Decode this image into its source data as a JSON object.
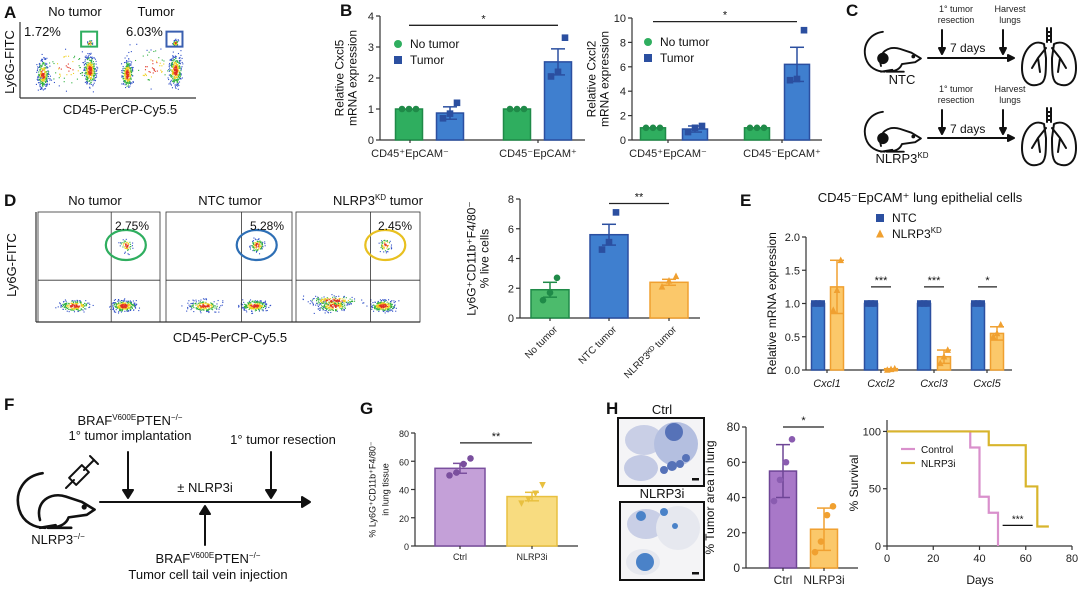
{
  "panel_labels": [
    "A",
    "B",
    "C",
    "D",
    "E",
    "F",
    "G",
    "H"
  ],
  "panelA": {
    "titles": [
      "No tumor",
      "Tumor"
    ],
    "percentages": [
      "1.72%",
      "6.03%"
    ],
    "gate_colors": [
      "#2fae5f",
      "#3a5fb0"
    ],
    "ylabel": "Ly6G-FITC",
    "xlabel": "CD45-PerCP-Cy5.5"
  },
  "panelC": {
    "step1": [
      "1° tumor",
      "resection"
    ],
    "step2": [
      "Harvest",
      "lungs"
    ],
    "duration": "7 days",
    "groups": [
      {
        "name": "NTC",
        "sup": ""
      },
      {
        "name": "NLRP3",
        "sup": "KD"
      }
    ]
  },
  "panelD_flow": {
    "titles": [
      {
        "name": "No tumor",
        "sup": "",
        "rest": ""
      },
      {
        "name": "NTC tumor",
        "sup": "",
        "rest": ""
      },
      {
        "name": "NLRP3",
        "sup": "KD",
        "rest": " tumor"
      }
    ],
    "percentages": [
      "2.75%",
      "5.28%",
      "2.45%"
    ],
    "gate_colors": [
      "#2fae5f",
      "#2e6fb5",
      "#e8c020"
    ],
    "ylabel": "Ly6G-FITC",
    "xlabel": "CD45-PerCP-Cy5.5"
  },
  "panelF": {
    "implant_gene": {
      "a": "BRAF",
      "b": "V600E",
      "c": "PTEN",
      "d": "−/−"
    },
    "implant_label": "1° tumor implantation",
    "resection_label": "1° tumor resection",
    "treatment": "± NLRP3i",
    "mouse": {
      "name": "NLRP3",
      "sup": "−/−"
    },
    "injection_gene": {
      "a": "BRAF",
      "b": "V600E",
      "c": "PTEN",
      "d": "−/−"
    },
    "injection_label": "Tumor cell tail vein injection"
  },
  "panelH_images": {
    "titles": [
      "Ctrl",
      "NLRP3i"
    ]
  },
  "chart_data": [
    {
      "id": "B1",
      "type": "bar",
      "categories": [
        "CD45⁺EpCAM⁻",
        "CD45⁻EpCAM⁺"
      ],
      "ylabel": [
        "Relative Cxcl5",
        "mRNA expression"
      ],
      "ylim": [
        0,
        4
      ],
      "yticks": [
        0,
        1,
        2,
        3,
        4
      ],
      "series": [
        {
          "name": "No tumor",
          "color": "#2fae5f",
          "edge": "#1f8a48",
          "marker": "circle",
          "values": [
            1,
            1
          ],
          "error": [
            0,
            0
          ],
          "points": [
            [
              1,
              1,
              1
            ],
            [
              1,
              1,
              1
            ]
          ]
        },
        {
          "name": "Tumor",
          "color": "#3f7fcf",
          "edge": "#2b4fa0",
          "marker": "square",
          "values": [
            0.87,
            2.52
          ],
          "error": [
            0.2,
            0.42
          ],
          "points": [
            [
              0.7,
              0.85,
              1.2
            ],
            [
              2.05,
              2.2,
              3.3
            ]
          ]
        }
      ],
      "significance": [
        {
          "label": "*",
          "from": [
            0,
            0
          ],
          "to": [
            1,
            1
          ],
          "y": 3.7
        }
      ],
      "legend": "top-left"
    },
    {
      "id": "B2",
      "type": "bar",
      "categories": [
        "CD45⁺EpCAM⁻",
        "CD45⁻EpCAM⁺"
      ],
      "ylabel": [
        "Relative Cxcl2",
        "mRNA expression"
      ],
      "ylim": [
        0,
        10
      ],
      "yticks": [
        0,
        2,
        4,
        6,
        8,
        10
      ],
      "series": [
        {
          "name": "No tumor",
          "color": "#2fae5f",
          "edge": "#1f8a48",
          "marker": "circle",
          "values": [
            1,
            1
          ],
          "error": [
            0,
            0
          ],
          "points": [
            [
              1,
              1,
              1
            ],
            [
              1,
              1,
              1
            ]
          ]
        },
        {
          "name": "Tumor",
          "color": "#3f7fcf",
          "edge": "#2b4fa0",
          "marker": "square",
          "values": [
            0.9,
            6.2
          ],
          "error": [
            0.25,
            1.4
          ],
          "points": [
            [
              0.65,
              1.0,
              1.15
            ],
            [
              4.9,
              5.0,
              9.0
            ]
          ]
        }
      ],
      "significance": [
        {
          "label": "*",
          "from": [
            0,
            0
          ],
          "to": [
            1,
            1
          ],
          "y": 9.7
        }
      ],
      "legend": "top-left"
    },
    {
      "id": "D",
      "type": "bar",
      "categories": [
        "No tumor",
        "NTC tumor",
        "NLRP3ᴷᴰ tumor"
      ],
      "ylabel": [
        "Ly6G⁺CD11b⁺F4/80⁻",
        "% live cells"
      ],
      "ylim": [
        0,
        8
      ],
      "yticks": [
        0,
        2,
        4,
        6,
        8
      ],
      "series": [
        {
          "name": "",
          "colors": [
            "#4cbb6c",
            "#3f7fcf",
            "#fbc86a"
          ],
          "edges": [
            "#1f8a48",
            "#2b4fa0",
            "#f0a030"
          ],
          "markers": [
            "circle",
            "square",
            "triangle"
          ],
          "values": [
            1.9,
            5.6,
            2.4
          ],
          "error": [
            0.5,
            0.7,
            0.2
          ],
          "points": [
            [
              1.2,
              1.7,
              2.7
            ],
            [
              4.6,
              5.1,
              7.1
            ],
            [
              2.1,
              2.5,
              2.8
            ]
          ]
        }
      ],
      "significance": [
        {
          "label": "**",
          "from": [
            0,
            1
          ],
          "to": [
            0,
            2
          ],
          "y": 7.7
        }
      ],
      "xlabel_rotated": true
    },
    {
      "id": "E",
      "type": "bar",
      "title": "CD45⁻EpCAM⁺ lung epithelial cells",
      "categories": [
        "Cxcl1",
        "Cxcl2",
        "Cxcl3",
        "Cxcl5"
      ],
      "ylabel": [
        "Relative mRNA expression"
      ],
      "ylim": [
        0,
        2
      ],
      "yticks": [
        0,
        0.5,
        1,
        1.5,
        2
      ],
      "ytick_labels": [
        "0.0",
        "0.5",
        "1.0",
        "1.5",
        "2.0"
      ],
      "series": [
        {
          "name": "NTC",
          "sup": "",
          "color": "#3f7fcf",
          "edge": "#2b4fa0",
          "marker": "square",
          "values": [
            1,
            1,
            1,
            1
          ],
          "error": [
            0,
            0,
            0,
            0
          ],
          "points": [
            [
              1,
              1,
              1
            ],
            [
              1,
              1,
              1
            ],
            [
              1,
              1,
              1
            ],
            [
              1,
              1,
              1
            ]
          ]
        },
        {
          "name": "NLRP3",
          "sup": "KD",
          "color": "#fbc86a",
          "edge": "#f0a030",
          "marker": "triangle",
          "values": [
            1.25,
            0.01,
            0.2,
            0.55
          ],
          "error": [
            0.4,
            0.01,
            0.1,
            0.1
          ],
          "points": [
            [
              0.9,
              1.2,
              1.65
            ],
            [
              0,
              0.01,
              0.02
            ],
            [
              0.1,
              0.2,
              0.3
            ],
            [
              0.5,
              0.55,
              0.68
            ]
          ]
        }
      ],
      "significance": [
        {
          "label": "***",
          "from": [
            0,
            1
          ],
          "to": [
            1,
            1
          ],
          "y": 1.25
        },
        {
          "label": "***",
          "from": [
            0,
            2
          ],
          "to": [
            1,
            2
          ],
          "y": 1.25
        },
        {
          "label": "*",
          "from": [
            0,
            3
          ],
          "to": [
            1,
            3
          ],
          "y": 1.25
        }
      ],
      "legend": "top-center",
      "italic_categories": true
    },
    {
      "id": "G",
      "type": "bar",
      "categories": [
        "Ctrl",
        "NLRP3i"
      ],
      "ylabel": [
        "% Ly6G⁺CD11b⁺F4/80⁻",
        "in lung tissue"
      ],
      "ylim": [
        0,
        80
      ],
      "yticks": [
        0,
        20,
        40,
        60,
        80
      ],
      "series": [
        {
          "name": "",
          "colors": [
            "#c4a0d8",
            "#f8dc80"
          ],
          "edges": [
            "#7a4f9e",
            "#e8c040"
          ],
          "markers": [
            "circle",
            "triangle-down"
          ],
          "values": [
            55,
            35
          ],
          "error": [
            3.5,
            3
          ],
          "points": [
            [
              50,
              52,
              58,
              62
            ],
            [
              30,
              33,
              37,
              43
            ]
          ]
        }
      ],
      "significance": [
        {
          "label": "**",
          "from": [
            0,
            0
          ],
          "to": [
            0,
            1
          ],
          "y": 73
        }
      ]
    },
    {
      "id": "H",
      "type": "bar",
      "categories": [
        "Ctrl",
        "NLRP3i"
      ],
      "ylabel": [
        "% Tumor area in lung"
      ],
      "ylim": [
        0,
        80
      ],
      "yticks": [
        0,
        20,
        40,
        60,
        80
      ],
      "series": [
        {
          "name": "",
          "colors": [
            "#a878c8",
            "#fbc86a"
          ],
          "edges": [
            "#6e4596",
            "#f0a030"
          ],
          "markers": [
            "circle",
            "circle"
          ],
          "pointcolors": [
            "#8a5cb0",
            "#f0a030"
          ],
          "values": [
            55,
            22
          ],
          "error": [
            15,
            12
          ],
          "points": [
            [
              38,
              50,
              60,
              73
            ],
            [
              9,
              15,
              30,
              35
            ]
          ]
        }
      ],
      "significance": [
        {
          "label": "*",
          "from": [
            0,
            0
          ],
          "to": [
            0,
            1
          ],
          "y": 80
        }
      ]
    },
    {
      "id": "H_survival",
      "type": "line",
      "xlabel": "Days",
      "ylabel": "% Survival",
      "xlim": [
        0,
        80
      ],
      "ylim": [
        0,
        110
      ],
      "xticks": [
        0,
        20,
        40,
        60,
        80
      ],
      "yticks": [
        0,
        50,
        100
      ],
      "series": [
        {
          "name": "Control",
          "color": "#d990cc",
          "x": [
            0,
            36,
            36,
            40,
            40,
            44,
            44,
            48,
            48
          ],
          "y": [
            100,
            100,
            86,
            86,
            43,
            43,
            29,
            29,
            0
          ]
        },
        {
          "name": "NLRP3i",
          "color": "#d8b52c",
          "x": [
            0,
            44,
            44,
            60,
            60,
            65,
            65,
            70
          ],
          "y": [
            100,
            100,
            88,
            88,
            52,
            52,
            17,
            17
          ]
        }
      ],
      "significance": [
        {
          "label": "***",
          "x": [
            50,
            63
          ],
          "y": 18
        }
      ],
      "legend": "top-left"
    }
  ]
}
